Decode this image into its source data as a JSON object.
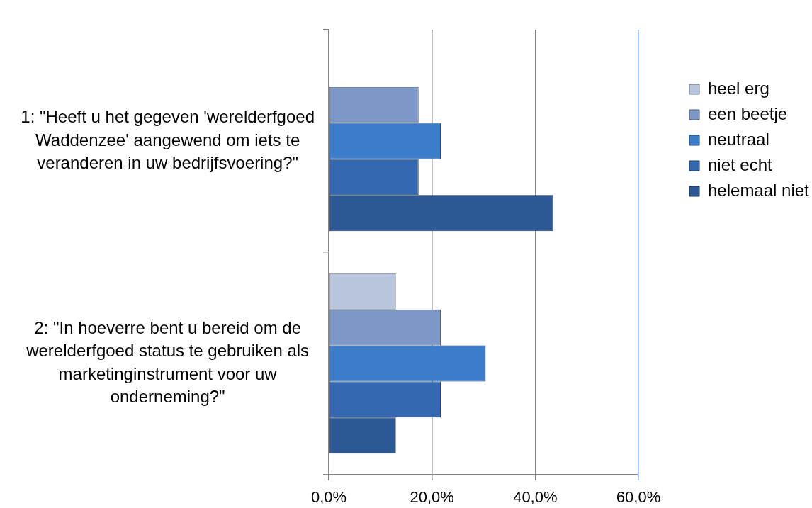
{
  "chart_data": {
    "type": "bar",
    "orientation": "horizontal",
    "categories": [
      "1: \"Heeft u het gegeven 'werelderfgoed Waddenzee' aangewend om iets te veranderen in uw bedrijfsvoering?\"",
      "2: \"In hoeverre bent u bereid om de werelderfgoed status te gebruiken als marketinginstrument voor uw onderneming?\""
    ],
    "series": [
      {
        "name": "heel erg",
        "color": "#b9c5dd",
        "values": [
          0,
          13.0
        ]
      },
      {
        "name": "een beetje",
        "color": "#7d98c6",
        "values": [
          17.4,
          21.7
        ]
      },
      {
        "name": "neutraal",
        "color": "#3b7ccb",
        "values": [
          21.7,
          30.4
        ]
      },
      {
        "name": "niet echt",
        "color": "#3468b0",
        "values": [
          17.4,
          21.7
        ]
      },
      {
        "name": "helemaal niet",
        "color": "#2c5894",
        "values": [
          43.5,
          13.0
        ]
      }
    ],
    "xlim": [
      0,
      60
    ],
    "xticks": [
      {
        "value": 0,
        "label": "0,0%"
      },
      {
        "value": 20,
        "label": "20,0%"
      },
      {
        "value": 40,
        "label": "40,0%"
      },
      {
        "value": 60,
        "label": "60,0%"
      }
    ],
    "grid": "x",
    "legend": "right"
  }
}
